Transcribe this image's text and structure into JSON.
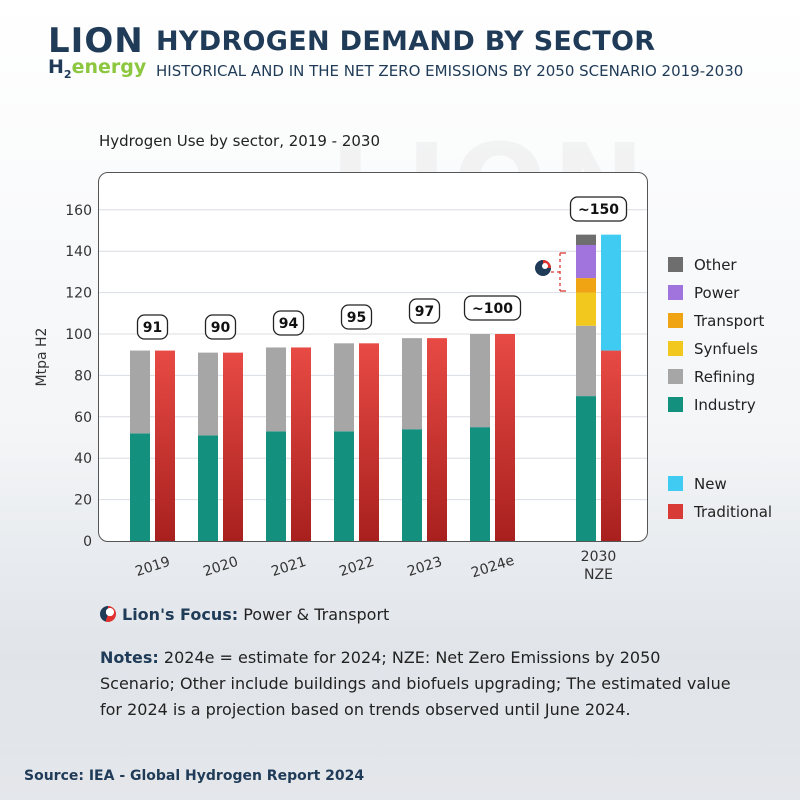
{
  "brand": {
    "logo_top": "LION",
    "logo_h": "H",
    "logo_sub": "2",
    "logo_bottom": "energy"
  },
  "header": {
    "title": "HYDROGEN DEMAND BY SECTOR",
    "subtitle": "HISTORICAL AND IN THE NET ZERO EMISSIONS BY 2050 SCENARIO 2019-2030"
  },
  "colors": {
    "industry": "#14907f",
    "refining": "#a6a6a6",
    "synfuels": "#f2c81e",
    "transport": "#f0a313",
    "power": "#a173dc",
    "other": "#6e6e6e",
    "new": "#40ccf2",
    "traditional": "#d83a36",
    "brand_navy": "#1f3b57",
    "brand_green": "#8dc63f"
  },
  "chart_data": {
    "type": "bar",
    "title": "Hydrogen Use by sector, 2019 - 2030",
    "ylabel": "Mtpa H2",
    "xlabel": "",
    "ylim": [
      0,
      170
    ],
    "yticks": [
      0,
      20,
      40,
      60,
      80,
      100,
      120,
      140,
      160
    ],
    "grid": true,
    "categories": [
      "2019",
      "2020",
      "2021",
      "2022",
      "2023",
      "2024e",
      "2030 NZE"
    ],
    "sector_stack": [
      {
        "name": "Industry",
        "values": [
          52,
          51,
          53,
          53,
          54,
          55,
          70
        ]
      },
      {
        "name": "Refining",
        "values": [
          40,
          40,
          40.5,
          42.5,
          44,
          45,
          34
        ]
      },
      {
        "name": "Synfuels",
        "values": [
          0,
          0,
          0,
          0,
          0,
          0,
          16
        ]
      },
      {
        "name": "Transport",
        "values": [
          0,
          0,
          0,
          0,
          0,
          0,
          7
        ]
      },
      {
        "name": "Power",
        "values": [
          0,
          0,
          0,
          0,
          0,
          0,
          16
        ]
      },
      {
        "name": "Other",
        "values": [
          0,
          0,
          0,
          0,
          0,
          0,
          5
        ]
      }
    ],
    "origin_stack": [
      {
        "name": "Traditional",
        "values": [
          92,
          91,
          93.5,
          95.5,
          98,
          100,
          92
        ]
      },
      {
        "name": "New",
        "values": [
          0,
          0,
          0,
          0,
          0,
          0,
          56
        ]
      }
    ],
    "totals": [
      "91",
      "90",
      "94",
      "95",
      "97",
      "~100",
      "~150"
    ],
    "legend_sectors": [
      "Other",
      "Power",
      "Transport",
      "Synfuels",
      "Refining",
      "Industry"
    ],
    "legend_origin": [
      "New",
      "Traditional"
    ]
  },
  "focus": {
    "label": "Lion's Focus:",
    "text": "Power & Transport"
  },
  "notes": {
    "label": "Notes:",
    "text": "2024e = estimate for 2024; NZE: Net Zero Emissions by 2050 Scenario; Other include buildings and biofuels upgrading; The estimated value for 2024 is a projection based on trends observed until  June 2024."
  },
  "source": "Source: IEA - Global Hydrogen Report 2024"
}
